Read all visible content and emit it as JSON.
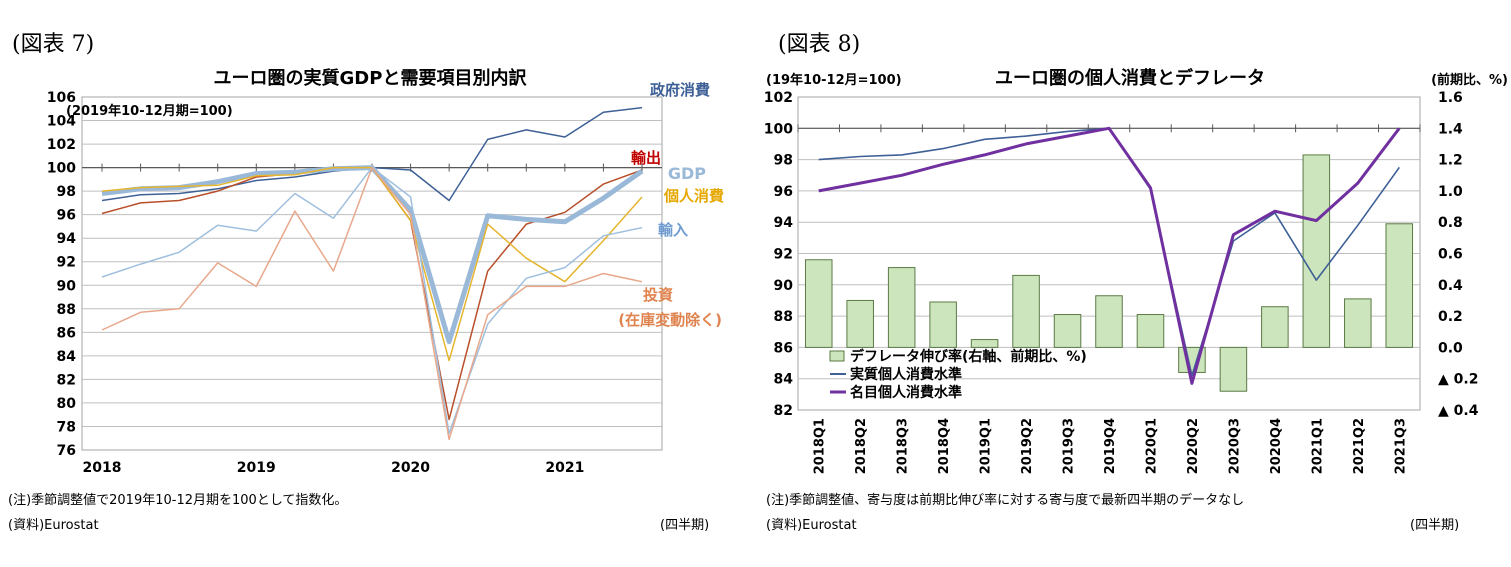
{
  "figure7": {
    "label": "(図表 7)",
    "note": "(注)季節調整値で2019年10-12月期を100として指数化。",
    "source": "(資料)Eurostat",
    "period": "(四半期)",
    "chart_data": {
      "type": "line",
      "title": "ユーロ圏の実質GDPと需要項目別内訳",
      "subtitle": "(2019年10-12月期=100)",
      "x": [
        0,
        1,
        2,
        3,
        4,
        5,
        6,
        7,
        8,
        9,
        10,
        11,
        12,
        13,
        14
      ],
      "x_tick_labels": [
        "2018",
        "2019",
        "2020",
        "2021"
      ],
      "x_tick_positions": [
        0,
        4,
        8,
        12
      ],
      "ylim": [
        76,
        106
      ],
      "y_ticks": [
        76,
        78,
        80,
        82,
        84,
        86,
        88,
        90,
        92,
        94,
        96,
        98,
        100,
        102,
        104,
        106
      ],
      "series": [
        {
          "name": "政府消費",
          "color": "#3e6096",
          "width": 1.5,
          "values": [
            97.2,
            97.7,
            97.8,
            98.2,
            98.9,
            99.2,
            99.7,
            100,
            99.8,
            97.2,
            102.4,
            103.2,
            102.6,
            104.7,
            105.1
          ]
        },
        {
          "name": "輸出",
          "color": "#b84f2a",
          "width": 1.5,
          "values": [
            96.1,
            97.0,
            97.2,
            98.0,
            99.2,
            99.5,
            100.0,
            100,
            95.5,
            78.6,
            91.2,
            95.2,
            96.2,
            98.6,
            99.8
          ]
        },
        {
          "name": "GDP",
          "color": "#9ab9d8",
          "width": 5,
          "values": [
            97.8,
            98.2,
            98.3,
            98.8,
            99.5,
            99.6,
            99.9,
            100,
            96.4,
            85.2,
            95.9,
            95.6,
            95.4,
            97.4,
            99.7
          ]
        },
        {
          "name": "個人消費",
          "color": "#e6b52e",
          "width": 1.5,
          "values": [
            98.0,
            98.3,
            98.4,
            98.5,
            99.3,
            99.4,
            100.0,
            100,
            95.5,
            83.6,
            95.2,
            92.3,
            90.3,
            93.8,
            97.5
          ]
        },
        {
          "name": "輸入",
          "color": "#9fbfde",
          "width": 1.5,
          "values": [
            90.7,
            91.8,
            92.8,
            95.1,
            94.6,
            97.8,
            95.7,
            100,
            97.5,
            77.4,
            86.7,
            90.6,
            91.5,
            94.2,
            94.9
          ]
        },
        {
          "name": "投資(在庫変動除く)",
          "color": "#e8a88c",
          "width": 1.5,
          "values": [
            86.2,
            87.7,
            88.0,
            91.9,
            89.9,
            96.3,
            91.2,
            100,
            96.0,
            76.9,
            87.5,
            89.9,
            89.9,
            91.0,
            90.3
          ]
        }
      ],
      "labels": {
        "govt": "政府消費",
        "export": "輸出",
        "gdp": "GDP",
        "consumption": "個人消費",
        "import": "輸入",
        "invest1": "投資",
        "invest2": "(在庫変動除く)"
      }
    }
  },
  "figure8": {
    "label": "(図表 8)",
    "note": "(注)季節調整値、寄与度は前期比伸び率に対する寄与度で最新四半期のデータなし",
    "source": "(資料)Eurostat",
    "period": "(四半期)",
    "chart_data": {
      "type": "bar",
      "title": "ユーロ圏の個人消費とデフレータ",
      "left_unit": "(19年10-12月=100)",
      "right_unit": "(前期比、%)",
      "categories": [
        "2018Q1",
        "2018Q2",
        "2018Q3",
        "2018Q4",
        "2019Q1",
        "2019Q2",
        "2019Q3",
        "2019Q4",
        "2020Q1",
        "2020Q2",
        "2020Q3",
        "2020Q4",
        "2021Q1",
        "2021Q2",
        "2021Q3"
      ],
      "ylim_left": [
        82,
        102
      ],
      "y_left_ticks": [
        82,
        84,
        86,
        88,
        90,
        92,
        94,
        96,
        98,
        100,
        102
      ],
      "ylim_right": [
        -0.4,
        1.6
      ],
      "y_right_ticks": [
        -0.4,
        -0.2,
        0,
        0.2,
        0.4,
        0.6,
        0.8,
        1.0,
        1.2,
        1.4,
        1.6
      ],
      "y_right_tick_labels": [
        "▲ 0.4",
        "▲ 0.2",
        "0.0",
        "0.2",
        "0.4",
        "0.6",
        "0.8",
        "1.0",
        "1.2",
        "1.4",
        "1.6"
      ],
      "bars": {
        "name": "デフレータ伸び率(右軸、前期比、%)",
        "axis": "right",
        "color": "#cce5bc",
        "stroke": "#5b7a46",
        "values": [
          0.56,
          0.3,
          0.51,
          0.29,
          0.05,
          0.46,
          0.21,
          0.33,
          0.21,
          -0.16,
          -0.28,
          0.26,
          1.23,
          0.31,
          0.79
        ]
      },
      "series": [
        {
          "name": "実質個人消費水準",
          "axis": "left",
          "color": "#3e6096",
          "width": 1.6,
          "values": [
            98.0,
            98.2,
            98.3,
            98.7,
            99.3,
            99.5,
            99.8,
            100,
            96.1,
            84.2,
            92.8,
            94.6,
            90.3,
            93.8,
            97.5
          ]
        },
        {
          "name": "名目個人消費水準",
          "axis": "left",
          "color": "#7030a0",
          "width": 3,
          "values": [
            96.0,
            96.5,
            97.0,
            97.7,
            98.3,
            99.0,
            99.5,
            100,
            96.2,
            83.7,
            93.2,
            94.7,
            94.1,
            96.5,
            100
          ]
        }
      ],
      "legend": [
        "デフレータ伸び率(右軸、前期比、%)",
        "実質個人消費水準",
        "名目個人消費水準"
      ]
    }
  }
}
